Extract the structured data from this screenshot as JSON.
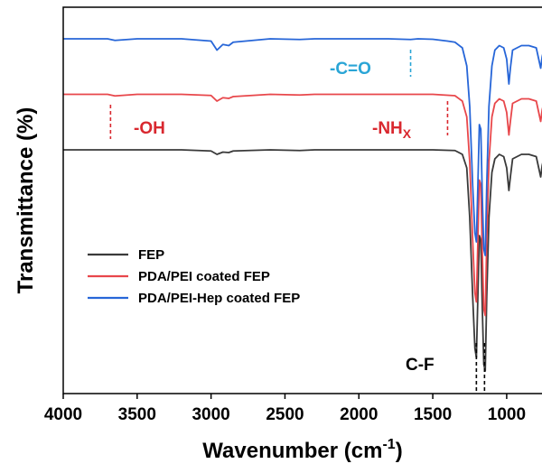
{
  "chart_data": {
    "type": "line",
    "xlabel": "Wavenumber (cm",
    "xlabel_sup": "-1",
    "xlabel_close": ")",
    "ylabel": "Transmittance (%)",
    "xlim": [
      4000,
      700
    ],
    "x_reversed": true,
    "xticks": [
      {
        "value": 4000,
        "label": "4000"
      },
      {
        "value": 3500,
        "label": "3500"
      },
      {
        "value": 3000,
        "label": "3000"
      },
      {
        "value": 2500,
        "label": "2500"
      },
      {
        "value": 2000,
        "label": "2000"
      },
      {
        "value": 1500,
        "label": "1500"
      },
      {
        "value": 1000,
        "label": "1000"
      }
    ],
    "y_ticks_shown": false,
    "legend_position": "bottom-left",
    "series": [
      {
        "name": "FEP",
        "color": "#3a3a3a",
        "offset": 0,
        "points": [
          [
            4000,
            100
          ],
          [
            3850,
            100
          ],
          [
            3700,
            100
          ],
          [
            3500,
            100
          ],
          [
            3200,
            100
          ],
          [
            3000,
            99.5
          ],
          [
            2960,
            98
          ],
          [
            2920,
            99
          ],
          [
            2880,
            98.8
          ],
          [
            2850,
            99.5
          ],
          [
            2600,
            100
          ],
          [
            2400,
            99.7
          ],
          [
            2300,
            100
          ],
          [
            2000,
            100
          ],
          [
            1800,
            100
          ],
          [
            1600,
            100
          ],
          [
            1500,
            100
          ],
          [
            1400,
            99.8
          ],
          [
            1350,
            99.7
          ],
          [
            1300,
            98
          ],
          [
            1270,
            92
          ],
          [
            1250,
            70
          ],
          [
            1230,
            35
          ],
          [
            1215,
            12
          ],
          [
            1205,
            8
          ],
          [
            1195,
            35
          ],
          [
            1185,
            62
          ],
          [
            1175,
            60
          ],
          [
            1165,
            30
          ],
          [
            1155,
            5
          ],
          [
            1145,
            2
          ],
          [
            1135,
            35
          ],
          [
            1120,
            70
          ],
          [
            1100,
            90
          ],
          [
            1080,
            96
          ],
          [
            1050,
            98
          ],
          [
            1020,
            97
          ],
          [
            1000,
            92
          ],
          [
            985,
            82
          ],
          [
            975,
            88
          ],
          [
            960,
            96
          ],
          [
            900,
            98
          ],
          [
            850,
            98
          ],
          [
            800,
            97
          ],
          [
            780,
            91
          ],
          [
            770,
            88
          ],
          [
            760,
            93
          ],
          [
            750,
            96
          ],
          [
            700,
            97
          ]
        ]
      },
      {
        "name": "PDA/PEI coated FEP",
        "color": "#e8474b",
        "offset": 30,
        "points": [
          [
            4000,
            100
          ],
          [
            3850,
            100
          ],
          [
            3700,
            100
          ],
          [
            3650,
            99.3
          ],
          [
            3500,
            100
          ],
          [
            3200,
            100
          ],
          [
            3000,
            99.5
          ],
          [
            2960,
            97
          ],
          [
            2920,
            98.5
          ],
          [
            2880,
            98.2
          ],
          [
            2850,
            99
          ],
          [
            2600,
            100
          ],
          [
            2400,
            99.7
          ],
          [
            2300,
            100
          ],
          [
            2000,
            100
          ],
          [
            1800,
            100
          ],
          [
            1600,
            100
          ],
          [
            1500,
            100
          ],
          [
            1400,
            99.6
          ],
          [
            1350,
            99.4
          ],
          [
            1300,
            97
          ],
          [
            1270,
            90
          ],
          [
            1250,
            70
          ],
          [
            1230,
            35
          ],
          [
            1215,
            12
          ],
          [
            1205,
            8
          ],
          [
            1195,
            35
          ],
          [
            1185,
            62
          ],
          [
            1175,
            60
          ],
          [
            1165,
            30
          ],
          [
            1155,
            5
          ],
          [
            1145,
            2
          ],
          [
            1135,
            35
          ],
          [
            1120,
            70
          ],
          [
            1100,
            90
          ],
          [
            1080,
            96
          ],
          [
            1050,
            98
          ],
          [
            1020,
            97
          ],
          [
            1000,
            92
          ],
          [
            985,
            82
          ],
          [
            975,
            88
          ],
          [
            960,
            96
          ],
          [
            900,
            98
          ],
          [
            850,
            98
          ],
          [
            800,
            97
          ],
          [
            780,
            91
          ],
          [
            770,
            88
          ],
          [
            760,
            93
          ],
          [
            750,
            96
          ],
          [
            700,
            97
          ]
        ]
      },
      {
        "name": "PDA/PEI-Hep coated FEP",
        "color": "#2766d8",
        "offset": 60,
        "points": [
          [
            4000,
            100
          ],
          [
            3850,
            100
          ],
          [
            3700,
            100
          ],
          [
            3650,
            99.3
          ],
          [
            3500,
            100
          ],
          [
            3200,
            100
          ],
          [
            3000,
            99
          ],
          [
            2960,
            95
          ],
          [
            2920,
            97.5
          ],
          [
            2880,
            97
          ],
          [
            2850,
            98.5
          ],
          [
            2600,
            100
          ],
          [
            2400,
            99.7
          ],
          [
            2300,
            100
          ],
          [
            2000,
            100
          ],
          [
            1800,
            100
          ],
          [
            1650,
            99.7
          ],
          [
            1600,
            100
          ],
          [
            1500,
            99.8
          ],
          [
            1400,
            99
          ],
          [
            1350,
            98.5
          ],
          [
            1300,
            96
          ],
          [
            1270,
            88
          ],
          [
            1250,
            70
          ],
          [
            1230,
            35
          ],
          [
            1215,
            14
          ],
          [
            1205,
            10
          ],
          [
            1195,
            35
          ],
          [
            1185,
            62
          ],
          [
            1175,
            60
          ],
          [
            1165,
            30
          ],
          [
            1155,
            7
          ],
          [
            1145,
            4
          ],
          [
            1135,
            35
          ],
          [
            1120,
            70
          ],
          [
            1100,
            88
          ],
          [
            1080,
            95
          ],
          [
            1050,
            97
          ],
          [
            1020,
            96
          ],
          [
            1000,
            91
          ],
          [
            985,
            80
          ],
          [
            975,
            87
          ],
          [
            960,
            95
          ],
          [
            900,
            97
          ],
          [
            850,
            97
          ],
          [
            800,
            96
          ],
          [
            780,
            90
          ],
          [
            770,
            87
          ],
          [
            760,
            92
          ],
          [
            750,
            95
          ],
          [
            700,
            96
          ]
        ]
      }
    ],
    "annotations": [
      {
        "label": "-OH",
        "color": "#d9282f",
        "marker_x": 3680,
        "marker_series": 1
      },
      {
        "label": "-NH",
        "sub": "X",
        "color": "#d9282f",
        "marker_x": 1400,
        "marker_series": 1
      },
      {
        "label": "-C=O",
        "color": "#2aa5d6",
        "marker_x": 1650,
        "marker_series": 2
      },
      {
        "label": "C-F",
        "color": "#000000",
        "marker_x": [
          1205,
          1150
        ]
      }
    ]
  }
}
